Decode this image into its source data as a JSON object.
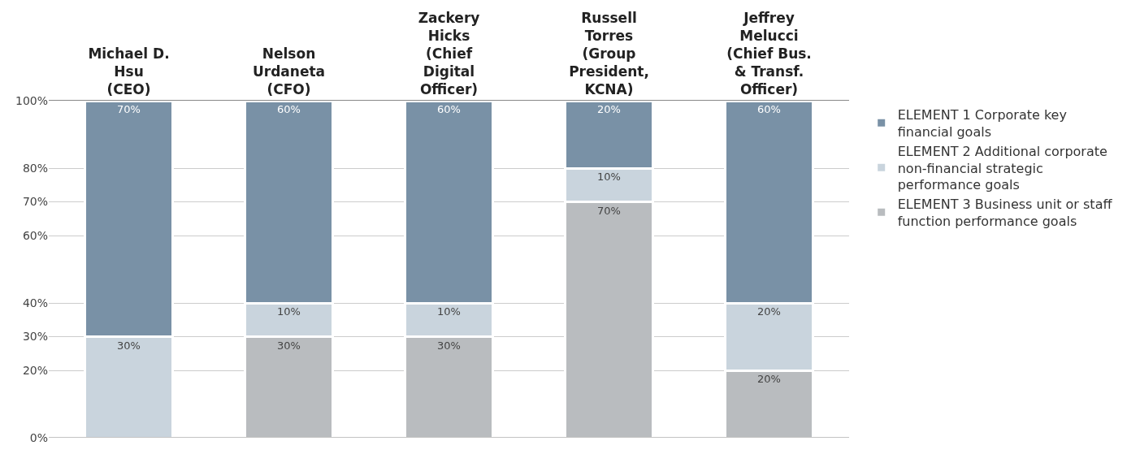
{
  "chart_data": {
    "type": "bar",
    "stacked": true,
    "categories": [
      "Michael D.\nHsu\n(CEO)",
      "Nelson\nUrdaneta\n(CFO)",
      "Zackery\nHicks\n(Chief\nDigital\nOfficer)",
      "Russell\nTorres\n(Group\nPresident,\nKCNA)",
      "Jeffrey\nMelucci\n(Chief Bus.\n& Transf.\nOfficer)"
    ],
    "series": [
      {
        "name": "ELEMENT 3 Business unit or staff function performance goals",
        "color": "#b9bcbf",
        "values": [
          null,
          30,
          30,
          70,
          20
        ],
        "value_labels": [
          null,
          "30%",
          "30%",
          "70%",
          "20%"
        ]
      },
      {
        "name": "ELEMENT 2 Additional corporate non-financial strategic performance goals",
        "color": "#c9d4dd",
        "values": [
          30,
          10,
          10,
          10,
          20
        ],
        "value_labels": [
          "30%",
          "10%",
          "10%",
          "10%",
          "20%"
        ]
      },
      {
        "name": "ELEMENT 1 Corporate key financial goals",
        "color": "#7991a6",
        "values": [
          70,
          60,
          60,
          20,
          60
        ],
        "value_labels": [
          "70%",
          "60%",
          "60%",
          "20%",
          "60%"
        ]
      }
    ],
    "ylim": [
      0,
      100
    ],
    "yticks": [
      {
        "value": 0,
        "label": "0%"
      },
      {
        "value": 20,
        "label": "20%"
      },
      {
        "value": 30,
        "label": "30%"
      },
      {
        "value": 40,
        "label": "40%"
      },
      {
        "value": 60,
        "label": "60%"
      },
      {
        "value": 70,
        "label": "70%"
      },
      {
        "value": 80,
        "label": "80%"
      },
      {
        "value": 100,
        "label": "100%"
      }
    ],
    "grid": "y",
    "legend": "right"
  }
}
